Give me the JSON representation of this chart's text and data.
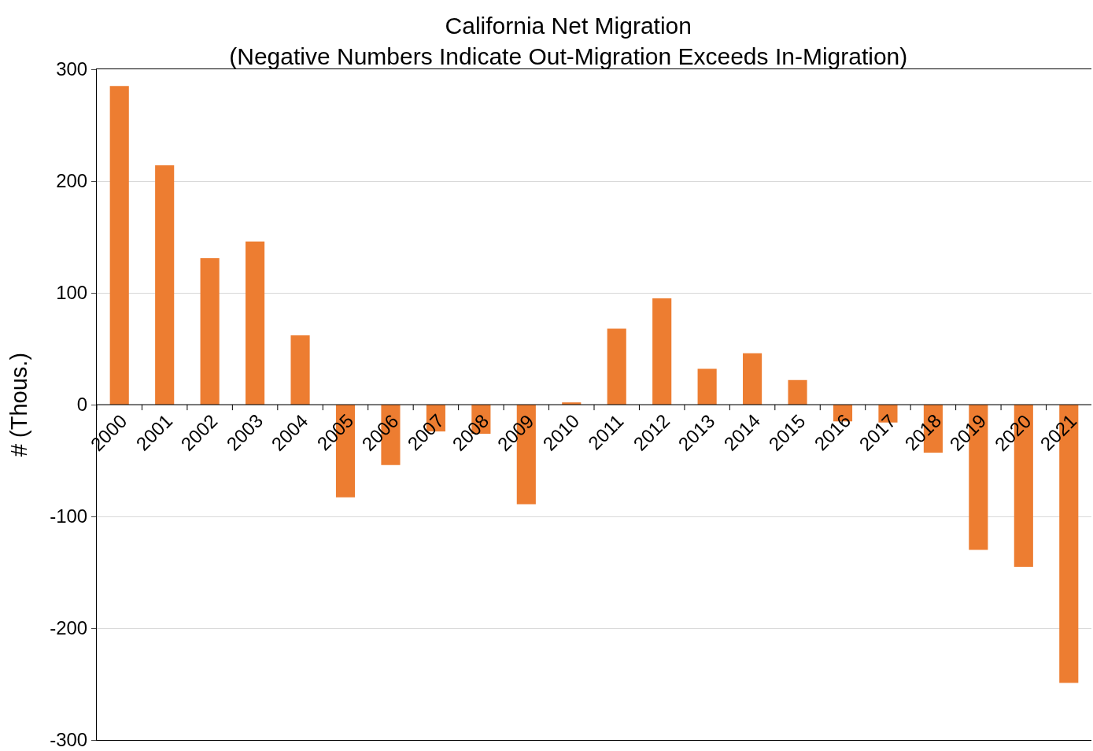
{
  "chart_data": {
    "type": "bar",
    "title": "California Net Migration",
    "subtitle": "(Negative Numbers Indicate Out-Migration Exceeds In-Migration)",
    "ylabel": "# (Thous.)",
    "categories": [
      "2000",
      "2001",
      "2002",
      "2003",
      "2004",
      "2005",
      "2006",
      "2007",
      "2008",
      "2009",
      "2010",
      "2011",
      "2012",
      "2013",
      "2014",
      "2015",
      "2016",
      "2017",
      "2018",
      "2019",
      "2020",
      "2021"
    ],
    "values": [
      285,
      214,
      131,
      146,
      62,
      -83,
      -54,
      -24,
      -26,
      -89,
      2,
      68,
      95,
      32,
      46,
      22,
      -15,
      -16,
      -43,
      -130,
      -145,
      -249
    ],
    "color": "#ed7d31",
    "ylim": [
      -300,
      300
    ],
    "yticks": [
      -300,
      -200,
      -100,
      0,
      100,
      200,
      300
    ],
    "grid": "y"
  }
}
